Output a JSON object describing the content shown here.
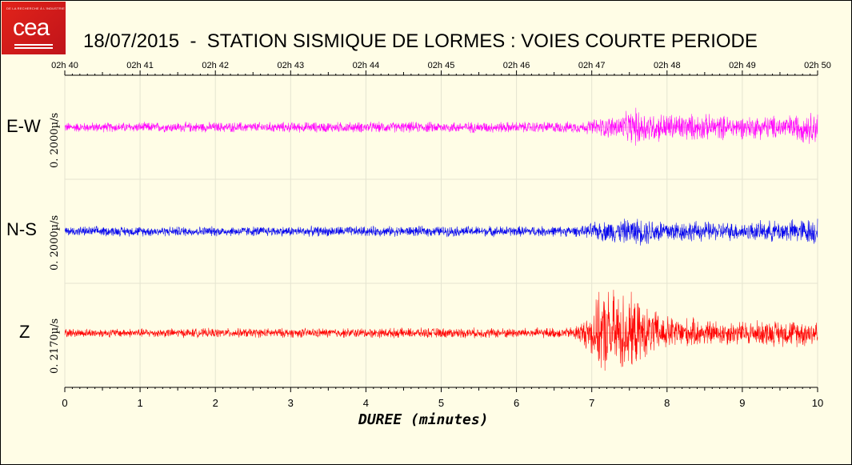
{
  "logo": {
    "text": "cea",
    "tagline": "DE LA RECHERCHE À L'INDUSTRIE"
  },
  "title": "18/07/2015  -  STATION SISMIQUE DE LORMES : VOIES COURTE PERIODE",
  "chart_data": {
    "type": "line",
    "title": "18/07/2015  -  STATION SISMIQUE DE LORMES : VOIES COURTE PERIODE",
    "xlabel": "DUREE (minutes)",
    "xlim": [
      0,
      10
    ],
    "x_ticks_bottom": [
      "0",
      "1",
      "2",
      "3",
      "4",
      "5",
      "6",
      "7",
      "8",
      "9",
      "10"
    ],
    "x_ticks_top": [
      "02h 40",
      "02h 41",
      "02h 42",
      "02h 43",
      "02h 44",
      "02h 45",
      "02h 46",
      "02h 47",
      "02h 48",
      "02h 49",
      "02h 50"
    ],
    "grid": true,
    "series": [
      {
        "name": "E-W",
        "scale_label": "0. 2000µ/s",
        "color": "#ff00ff",
        "envelope": [
          {
            "t": 0,
            "a": 0.12
          },
          {
            "t": 6.9,
            "a": 0.14
          },
          {
            "t": 7.0,
            "a": 0.2
          },
          {
            "t": 7.4,
            "a": 0.32
          },
          {
            "t": 7.6,
            "a": 0.48
          },
          {
            "t": 7.8,
            "a": 0.36
          },
          {
            "t": 8.2,
            "a": 0.34
          },
          {
            "t": 9.0,
            "a": 0.28
          },
          {
            "t": 9.6,
            "a": 0.3
          },
          {
            "t": 10,
            "a": 0.42
          }
        ]
      },
      {
        "name": "N-S",
        "scale_label": "0. 2000µ/s",
        "color": "#0000ee",
        "envelope": [
          {
            "t": 0,
            "a": 0.12
          },
          {
            "t": 6.9,
            "a": 0.13
          },
          {
            "t": 7.0,
            "a": 0.22
          },
          {
            "t": 7.4,
            "a": 0.3
          },
          {
            "t": 7.7,
            "a": 0.34
          },
          {
            "t": 8.2,
            "a": 0.26
          },
          {
            "t": 9.0,
            "a": 0.22
          },
          {
            "t": 9.6,
            "a": 0.28
          },
          {
            "t": 10,
            "a": 0.34
          }
        ]
      },
      {
        "name": "Z",
        "scale_label": "0. 2170µ/s",
        "color": "#ff0000",
        "envelope": [
          {
            "t": 0,
            "a": 0.1
          },
          {
            "t": 6.7,
            "a": 0.12
          },
          {
            "t": 6.9,
            "a": 0.3
          },
          {
            "t": 7.1,
            "a": 0.85
          },
          {
            "t": 7.2,
            "a": 1.0
          },
          {
            "t": 7.45,
            "a": 0.95
          },
          {
            "t": 7.7,
            "a": 0.6
          },
          {
            "t": 8.0,
            "a": 0.4
          },
          {
            "t": 8.5,
            "a": 0.3
          },
          {
            "t": 9.0,
            "a": 0.28
          },
          {
            "t": 9.5,
            "a": 0.3
          },
          {
            "t": 10,
            "a": 0.32
          }
        ]
      }
    ]
  }
}
